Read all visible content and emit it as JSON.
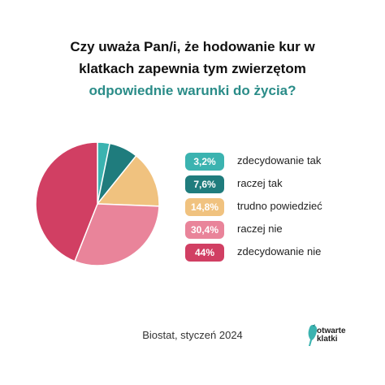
{
  "title": {
    "line1": "Czy uważa Pan/i, że hodowanie kur w",
    "line2": "klatkach zapewnia tym zwierzętom",
    "line3": "odpowiednie warunki do życia?"
  },
  "chart_data": {
    "type": "pie",
    "slices": [
      {
        "label": "zdecydowanie tak",
        "value": 3.2,
        "display": "3,2%",
        "color": "#3bb3b0"
      },
      {
        "label": "raczej tak",
        "value": 7.6,
        "display": "7,6%",
        "color": "#1f7c7d"
      },
      {
        "label": "trudno powiedzieć",
        "value": 14.8,
        "display": "14,8%",
        "color": "#f0c27f"
      },
      {
        "label": "raczej nie",
        "value": 30.4,
        "display": "30,4%",
        "color": "#e9849a"
      },
      {
        "label": "zdecydowanie nie",
        "value": 44,
        "display": "44%",
        "color": "#d13f63"
      }
    ],
    "legend_position": "right"
  },
  "source": "Biostat, styczeń 2024",
  "logo": {
    "line1": "otwarte",
    "line2": "klatki"
  },
  "colors": {
    "accent_title": "#2a8c88"
  }
}
